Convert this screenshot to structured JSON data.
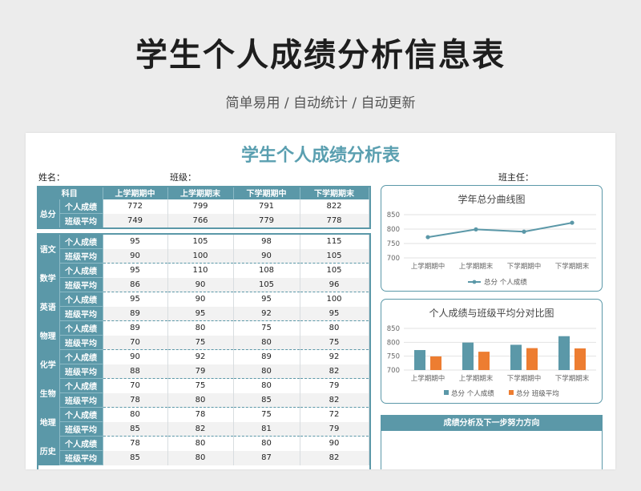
{
  "hero": {
    "title": "学生个人成绩分析信息表",
    "subtitle": "简单易用 / 自动统计 / 自动更新"
  },
  "sheet": {
    "title": "学生个人成绩分析表",
    "name_label": "姓名：",
    "class_label": "班级：",
    "teacher_label": "班主任："
  },
  "table": {
    "subject_header": "科目",
    "periods": [
      "上学期期中",
      "上学期期末",
      "下学期期中",
      "下学期期末"
    ],
    "row_labels": {
      "personal": "个人成绩",
      "average": "班级平均"
    },
    "total": {
      "name": "总分",
      "personal": [
        772,
        799,
        791,
        822
      ],
      "average": [
        749,
        766,
        779,
        778
      ]
    },
    "subjects": [
      {
        "name": "语文",
        "personal": [
          95,
          105,
          98,
          115
        ],
        "average": [
          90,
          100,
          90,
          105
        ]
      },
      {
        "name": "数学",
        "personal": [
          95,
          110,
          108,
          105
        ],
        "average": [
          86,
          90,
          105,
          96
        ]
      },
      {
        "name": "英语",
        "personal": [
          95,
          90,
          95,
          100
        ],
        "average": [
          89,
          95,
          92,
          95
        ]
      },
      {
        "name": "物理",
        "personal": [
          89,
          80,
          75,
          80
        ],
        "average": [
          70,
          75,
          80,
          75
        ]
      },
      {
        "name": "化学",
        "personal": [
          90,
          92,
          89,
          92
        ],
        "average": [
          88,
          79,
          80,
          82
        ]
      },
      {
        "name": "生物",
        "personal": [
          70,
          75,
          80,
          79
        ],
        "average": [
          78,
          80,
          85,
          82
        ]
      },
      {
        "name": "地理",
        "personal": [
          80,
          78,
          75,
          72
        ],
        "average": [
          85,
          82,
          81,
          79
        ]
      },
      {
        "name": "历史",
        "personal": [
          78,
          80,
          80,
          90
        ],
        "average": [
          85,
          80,
          87,
          82
        ]
      }
    ]
  },
  "chart_data": [
    {
      "type": "line",
      "title": "学年总分曲线图",
      "categories": [
        "上学期期中",
        "上学期期末",
        "下学期期中",
        "下学期期末"
      ],
      "series": [
        {
          "name": "总分 个人成绩",
          "values": [
            772,
            799,
            791,
            822
          ],
          "color": "#5b98a8"
        }
      ],
      "yticks": [
        700,
        750,
        800,
        850
      ],
      "ylim": [
        700,
        850
      ],
      "legend": "bottom"
    },
    {
      "type": "bar",
      "title": "个人成绩与班级平均分对比图",
      "categories": [
        "上学期期中",
        "上学期期末",
        "下学期期中",
        "下学期期末"
      ],
      "series": [
        {
          "name": "总分 个人成绩",
          "values": [
            772,
            799,
            791,
            822
          ],
          "color": "#5b98a8"
        },
        {
          "name": "总分 班级平均",
          "values": [
            749,
            766,
            779,
            778
          ],
          "color": "#ed7d31"
        }
      ],
      "yticks": [
        700,
        750,
        800,
        850
      ],
      "ylim": [
        700,
        850
      ],
      "legend": "bottom"
    }
  ],
  "analysis": {
    "title": "成绩分析及下一步努力方向"
  }
}
